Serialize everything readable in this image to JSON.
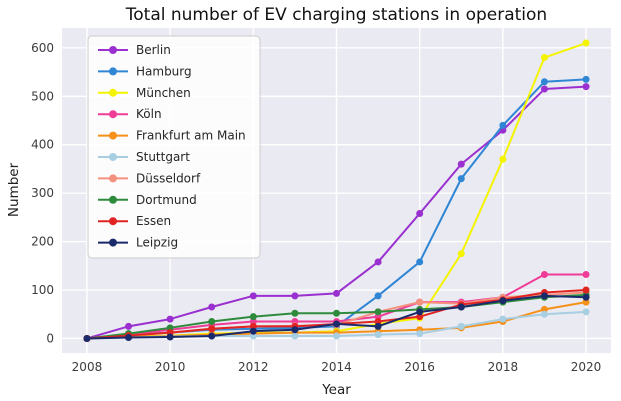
{
  "chart_data": {
    "type": "line",
    "title": "Total number of EV charging stations in operation",
    "xlabel": "Year",
    "ylabel": "Number",
    "x": [
      2008,
      2009,
      2010,
      2011,
      2012,
      2013,
      2014,
      2015,
      2016,
      2017,
      2018,
      2019,
      2020
    ],
    "xticks": [
      2008,
      2010,
      2012,
      2014,
      2016,
      2018,
      2020
    ],
    "yticks": [
      0,
      100,
      200,
      300,
      400,
      500,
      600
    ],
    "xlim": [
      2007.4,
      2020.6
    ],
    "ylim": [
      -30,
      641
    ],
    "grid": true,
    "legend_position": "upper left",
    "plot_background": "#eaeaf2",
    "grid_color": "#ffffff",
    "series": [
      {
        "name": "Berlin",
        "color": "#9a30cf",
        "values": [
          0,
          25,
          40,
          65,
          88,
          88,
          93,
          158,
          258,
          360,
          430,
          515,
          520
        ]
      },
      {
        "name": "Hamburg",
        "color": "#2f86d5",
        "values": [
          0,
          8,
          12,
          18,
          20,
          22,
          25,
          88,
          158,
          330,
          440,
          530,
          535
        ]
      },
      {
        "name": "München",
        "color": "#f4f400",
        "values": [
          0,
          4,
          6,
          10,
          12,
          12,
          15,
          30,
          42,
          175,
          370,
          580,
          610
        ]
      },
      {
        "name": "Köln",
        "color": "#ef3c97",
        "values": [
          0,
          8,
          18,
          28,
          35,
          35,
          35,
          45,
          75,
          75,
          85,
          132,
          132
        ]
      },
      {
        "name": "Frankfurt am Main",
        "color": "#f59118",
        "values": [
          0,
          3,
          5,
          8,
          10,
          12,
          12,
          15,
          18,
          22,
          35,
          60,
          75
        ]
      },
      {
        "name": "Stuttgart",
        "color": "#a8cee2",
        "values": [
          0,
          2,
          4,
          5,
          5,
          5,
          5,
          8,
          10,
          25,
          40,
          50,
          55
        ]
      },
      {
        "name": "Düsseldorf",
        "color": "#f4917f",
        "values": [
          0,
          6,
          12,
          20,
          25,
          26,
          28,
          55,
          75,
          72,
          85,
          90,
          95
        ]
      },
      {
        "name": "Dortmund",
        "color": "#2e8b3c",
        "values": [
          0,
          10,
          22,
          35,
          45,
          52,
          52,
          55,
          60,
          65,
          75,
          85,
          90
        ]
      },
      {
        "name": "Essen",
        "color": "#e02421",
        "values": [
          0,
          6,
          12,
          20,
          25,
          25,
          30,
          35,
          45,
          70,
          80,
          95,
          100
        ]
      },
      {
        "name": "Leipzig",
        "color": "#1b2a6b",
        "values": [
          0,
          2,
          3,
          5,
          15,
          18,
          30,
          25,
          55,
          65,
          78,
          88,
          85
        ]
      }
    ]
  }
}
